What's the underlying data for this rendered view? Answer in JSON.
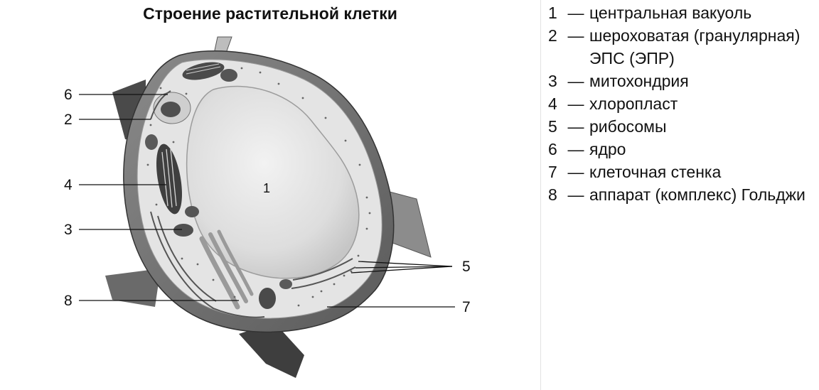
{
  "title": "Строение растительной клетки",
  "diagram": {
    "center_label": "1",
    "callouts": [
      "6",
      "2",
      "4",
      "3",
      "8",
      "5",
      "7"
    ]
  },
  "legend": [
    {
      "num": "1",
      "dash": "—",
      "text": "центральная вакуоль"
    },
    {
      "num": "2",
      "dash": "—",
      "text": "шероховатая (гранулярная) ЭПС (ЭПР)"
    },
    {
      "num": "3",
      "dash": "—",
      "text": "митохондрия"
    },
    {
      "num": "4",
      "dash": "—",
      "text": "хлоропласт"
    },
    {
      "num": "5",
      "dash": "—",
      "text": "рибосомы"
    },
    {
      "num": "6",
      "dash": "—",
      "text": "ядро"
    },
    {
      "num": "7",
      "dash": "—",
      "text": "клеточная стенка"
    },
    {
      "num": "8",
      "dash": "—",
      "text": "аппарат (комплекс) Гольджи"
    }
  ]
}
